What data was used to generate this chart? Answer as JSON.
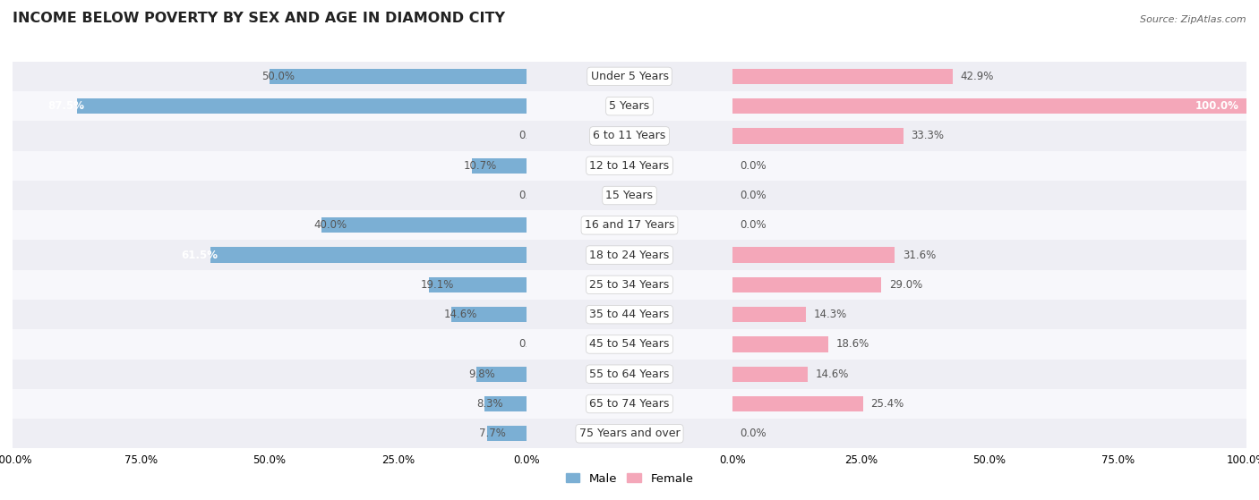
{
  "title": "INCOME BELOW POVERTY BY SEX AND AGE IN DIAMOND CITY",
  "source": "Source: ZipAtlas.com",
  "categories": [
    "Under 5 Years",
    "5 Years",
    "6 to 11 Years",
    "12 to 14 Years",
    "15 Years",
    "16 and 17 Years",
    "18 to 24 Years",
    "25 to 34 Years",
    "35 to 44 Years",
    "45 to 54 Years",
    "55 to 64 Years",
    "65 to 74 Years",
    "75 Years and over"
  ],
  "male": [
    50.0,
    87.5,
    0.0,
    10.7,
    0.0,
    40.0,
    61.5,
    19.1,
    14.6,
    0.0,
    9.8,
    8.3,
    7.7
  ],
  "female": [
    42.9,
    100.0,
    33.3,
    0.0,
    0.0,
    0.0,
    31.6,
    29.0,
    14.3,
    18.6,
    14.6,
    25.4,
    0.0
  ],
  "male_color": "#7bafd4",
  "female_color": "#f4a7b9",
  "male_label": "Male",
  "female_label": "Female",
  "row_bg_odd": "#eeeef4",
  "row_bg_even": "#f7f7fb",
  "axis_max": 100.0,
  "title_fontsize": 11.5,
  "label_fontsize": 9.0,
  "value_fontsize": 8.5,
  "legend_fontsize": 9.5,
  "source_fontsize": 8.0
}
